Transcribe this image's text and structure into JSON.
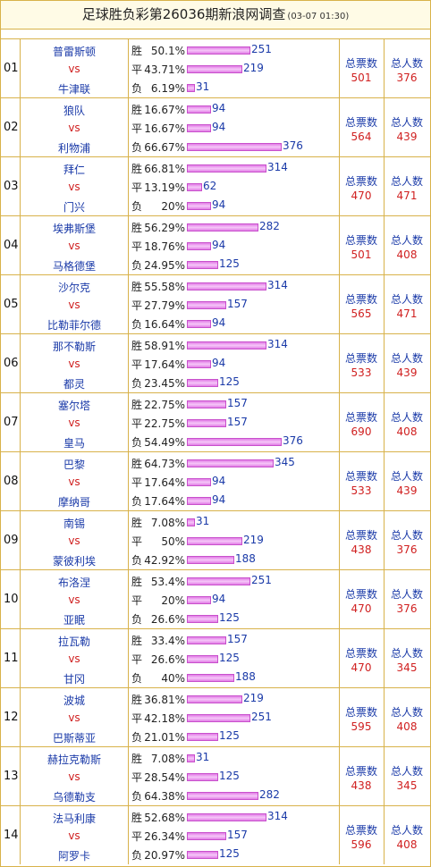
{
  "header": {
    "title": "足球胜负彩第26036期新浪网调查",
    "timestamp": "(03-07 01:30)"
  },
  "labels": {
    "vs": "vs",
    "win": "胜",
    "draw": "平",
    "loss": "负",
    "total_votes": "总票数",
    "total_people": "总人数"
  },
  "matches": [
    {
      "no": "01",
      "home": "普雷斯顿",
      "away": "牛津联",
      "votes": [
        {
          "pct": "50.1%",
          "count": "251"
        },
        {
          "pct": "43.71%",
          "count": "219"
        },
        {
          "pct": "6.19%",
          "count": "31"
        }
      ],
      "total_votes": "501",
      "total_people": "376"
    },
    {
      "no": "02",
      "home": "狼队",
      "away": "利物浦",
      "votes": [
        {
          "pct": "16.67%",
          "count": "94"
        },
        {
          "pct": "16.67%",
          "count": "94"
        },
        {
          "pct": "66.67%",
          "count": "376"
        }
      ],
      "total_votes": "564",
      "total_people": "439"
    },
    {
      "no": "03",
      "home": "拜仁",
      "away": "门兴",
      "votes": [
        {
          "pct": "66.81%",
          "count": "314"
        },
        {
          "pct": "13.19%",
          "count": "62"
        },
        {
          "pct": "20%",
          "count": "94"
        }
      ],
      "total_votes": "470",
      "total_people": "471"
    },
    {
      "no": "04",
      "home": "埃弗斯堡",
      "away": "马格德堡",
      "votes": [
        {
          "pct": "56.29%",
          "count": "282"
        },
        {
          "pct": "18.76%",
          "count": "94"
        },
        {
          "pct": "24.95%",
          "count": "125"
        }
      ],
      "total_votes": "501",
      "total_people": "408"
    },
    {
      "no": "05",
      "home": "沙尔克",
      "away": "比勒菲尔德",
      "votes": [
        {
          "pct": "55.58%",
          "count": "314"
        },
        {
          "pct": "27.79%",
          "count": "157"
        },
        {
          "pct": "16.64%",
          "count": "94"
        }
      ],
      "total_votes": "565",
      "total_people": "471"
    },
    {
      "no": "06",
      "home": "那不勒斯",
      "away": "都灵",
      "votes": [
        {
          "pct": "58.91%",
          "count": "314"
        },
        {
          "pct": "17.64%",
          "count": "94"
        },
        {
          "pct": "23.45%",
          "count": "125"
        }
      ],
      "total_votes": "533",
      "total_people": "439"
    },
    {
      "no": "07",
      "home": "塞尔塔",
      "away": "皇马",
      "votes": [
        {
          "pct": "22.75%",
          "count": "157"
        },
        {
          "pct": "22.75%",
          "count": "157"
        },
        {
          "pct": "54.49%",
          "count": "376"
        }
      ],
      "total_votes": "690",
      "total_people": "408"
    },
    {
      "no": "08",
      "home": "巴黎",
      "away": "摩纳哥",
      "votes": [
        {
          "pct": "64.73%",
          "count": "345"
        },
        {
          "pct": "17.64%",
          "count": "94"
        },
        {
          "pct": "17.64%",
          "count": "94"
        }
      ],
      "total_votes": "533",
      "total_people": "439"
    },
    {
      "no": "09",
      "home": "南锡",
      "away": "蒙彼利埃",
      "votes": [
        {
          "pct": "7.08%",
          "count": "31"
        },
        {
          "pct": "50%",
          "count": "219"
        },
        {
          "pct": "42.92%",
          "count": "188"
        }
      ],
      "total_votes": "438",
      "total_people": "376"
    },
    {
      "no": "10",
      "home": "布洛涅",
      "away": "亚眠",
      "votes": [
        {
          "pct": "53.4%",
          "count": "251"
        },
        {
          "pct": "20%",
          "count": "94"
        },
        {
          "pct": "26.6%",
          "count": "125"
        }
      ],
      "total_votes": "470",
      "total_people": "376"
    },
    {
      "no": "11",
      "home": "拉瓦勒",
      "away": "甘冈",
      "votes": [
        {
          "pct": "33.4%",
          "count": "157"
        },
        {
          "pct": "26.6%",
          "count": "125"
        },
        {
          "pct": "40%",
          "count": "188"
        }
      ],
      "total_votes": "470",
      "total_people": "345"
    },
    {
      "no": "12",
      "home": "波城",
      "away": "巴斯蒂亚",
      "votes": [
        {
          "pct": "36.81%",
          "count": "219"
        },
        {
          "pct": "42.18%",
          "count": "251"
        },
        {
          "pct": "21.01%",
          "count": "125"
        }
      ],
      "total_votes": "595",
      "total_people": "408"
    },
    {
      "no": "13",
      "home": "赫拉克勒斯",
      "away": "乌德勒支",
      "votes": [
        {
          "pct": "7.08%",
          "count": "31"
        },
        {
          "pct": "28.54%",
          "count": "125"
        },
        {
          "pct": "64.38%",
          "count": "282"
        }
      ],
      "total_votes": "438",
      "total_people": "345"
    },
    {
      "no": "14",
      "home": "法马利康",
      "away": "阿罗卡",
      "votes": [
        {
          "pct": "52.68%",
          "count": "314"
        },
        {
          "pct": "26.34%",
          "count": "157"
        },
        {
          "pct": "20.97%",
          "count": "125"
        }
      ],
      "total_votes": "596",
      "total_people": "408"
    }
  ]
}
